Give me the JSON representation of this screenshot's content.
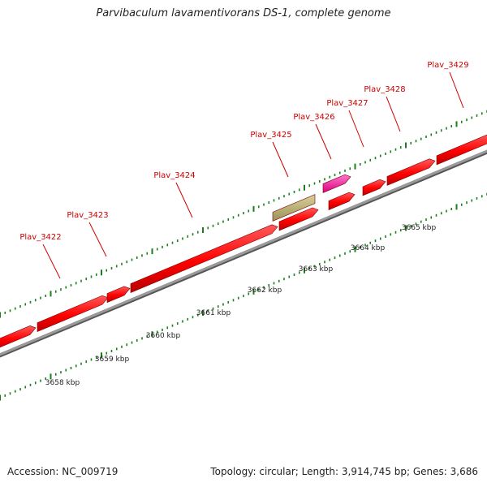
{
  "title": "Parvibaculum lavamentivorans DS-1, complete genome",
  "footer": {
    "accession": "Accession: NC_009719",
    "stats": "Topology: circular; Length: 3,914,745 bp; Genes: 3,686"
  },
  "kbp_labels": [
    "3658 kbp",
    "3659 kbp",
    "3660 kbp",
    "3661 kbp",
    "3662 kbp",
    "3663 kbp",
    "3664 kbp",
    "3665 kbp"
  ],
  "gene_labels": [
    "Plav_3422",
    "Plav_3423",
    "Plav_3424",
    "Plav_3425",
    "Plav_3426",
    "Plav_3427",
    "Plav_3428",
    "Plav_3429"
  ],
  "colors": {
    "cds": "#ff0000",
    "olive_feature": "#b5ab6c",
    "magenta_feature": "#ff2ca8",
    "backbone": "#888888",
    "ticks": "#1a7f1a",
    "label_text": "#cc0000"
  }
}
